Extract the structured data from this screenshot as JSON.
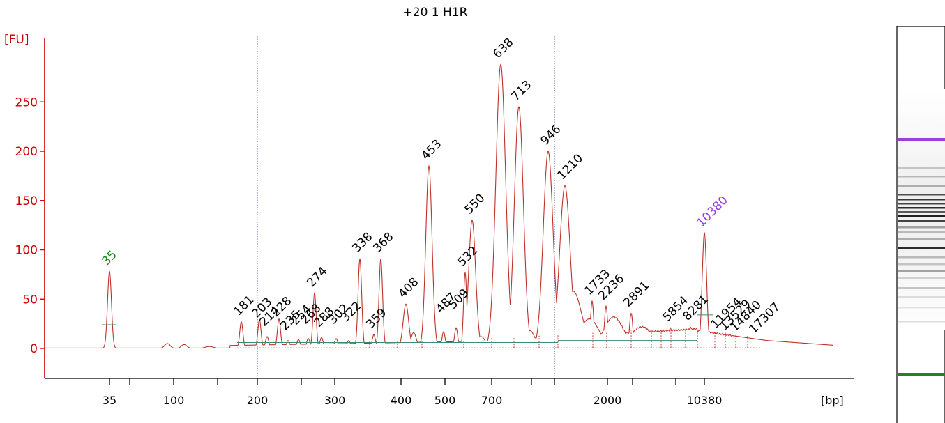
{
  "chart_data": {
    "type": "line",
    "title": "+20 1 H1R",
    "ylabel": "[FU]",
    "xlabel": "[bp]",
    "ylim": [
      -28,
      310
    ],
    "grid": false,
    "y_ticks": [
      0,
      50,
      100,
      150,
      200,
      250
    ],
    "x_tick_labels": [
      "35",
      "100",
      "200",
      "300",
      "400",
      "500",
      "700",
      "2000",
      "10380"
    ],
    "colors": {
      "trace": "#c0302a",
      "axis": "#cc0000",
      "lower_marker": "#178a17",
      "upper_marker": "#9b3de0",
      "baseline": "#3a8a7a",
      "guide": "#5555aa"
    },
    "series": [
      {
        "values": [
          {
            "x": "35",
            "y": 78
          },
          {
            "x": "181",
            "y": 27
          },
          {
            "x": "203",
            "y": 29
          },
          {
            "x": "214",
            "y": 12
          },
          {
            "x": "228",
            "y": 30
          },
          {
            "x": "235",
            "y": 8
          },
          {
            "x": "254",
            "y": 9
          },
          {
            "x": "268",
            "y": 10
          },
          {
            "x": "274",
            "y": 56
          },
          {
            "x": "288",
            "y": 11
          },
          {
            "x": "302",
            "y": 10
          },
          {
            "x": "322",
            "y": 8
          },
          {
            "x": "338",
            "y": 91
          },
          {
            "x": "359",
            "y": 14
          },
          {
            "x": "368",
            "y": 91
          },
          {
            "x": "408",
            "y": 45
          },
          {
            "x": "453",
            "y": 185
          },
          {
            "x": "487",
            "y": 17
          },
          {
            "x": "509",
            "y": 21
          },
          {
            "x": "532",
            "y": 77
          },
          {
            "x": "550",
            "y": 130
          },
          {
            "x": "638",
            "y": 288
          },
          {
            "x": "713",
            "y": 245
          },
          {
            "x": "946",
            "y": 200
          },
          {
            "x": "1210",
            "y": 165
          },
          {
            "x": "1733",
            "y": 48
          },
          {
            "x": "2236",
            "y": 43
          },
          {
            "x": "2891",
            "y": 36
          },
          {
            "x": "5854",
            "y": 21
          },
          {
            "x": "8281",
            "y": 22
          },
          {
            "x": "10380",
            "y": 117
          },
          {
            "x": "11954",
            "y": 14
          },
          {
            "x": "13529",
            "y": 12
          },
          {
            "x": "14840",
            "y": 11
          },
          {
            "x": "17307",
            "y": 9
          }
        ]
      }
    ],
    "peak_labels": [
      "35",
      "181",
      "203",
      "214",
      "228",
      "235",
      "254",
      "268",
      "274",
      "288",
      "302",
      "322",
      "338",
      "359",
      "368",
      "408",
      "453",
      "487",
      "509",
      "532",
      "550",
      "638",
      "713",
      "946",
      "1210",
      "1733",
      "2236",
      "2891",
      "5854",
      "8281",
      "10380",
      "11954",
      "13529",
      "14840",
      "17307"
    ],
    "marker_peaks": {
      "lower": "35",
      "upper": "10380"
    }
  },
  "gel": {
    "label": "gel-image"
  }
}
